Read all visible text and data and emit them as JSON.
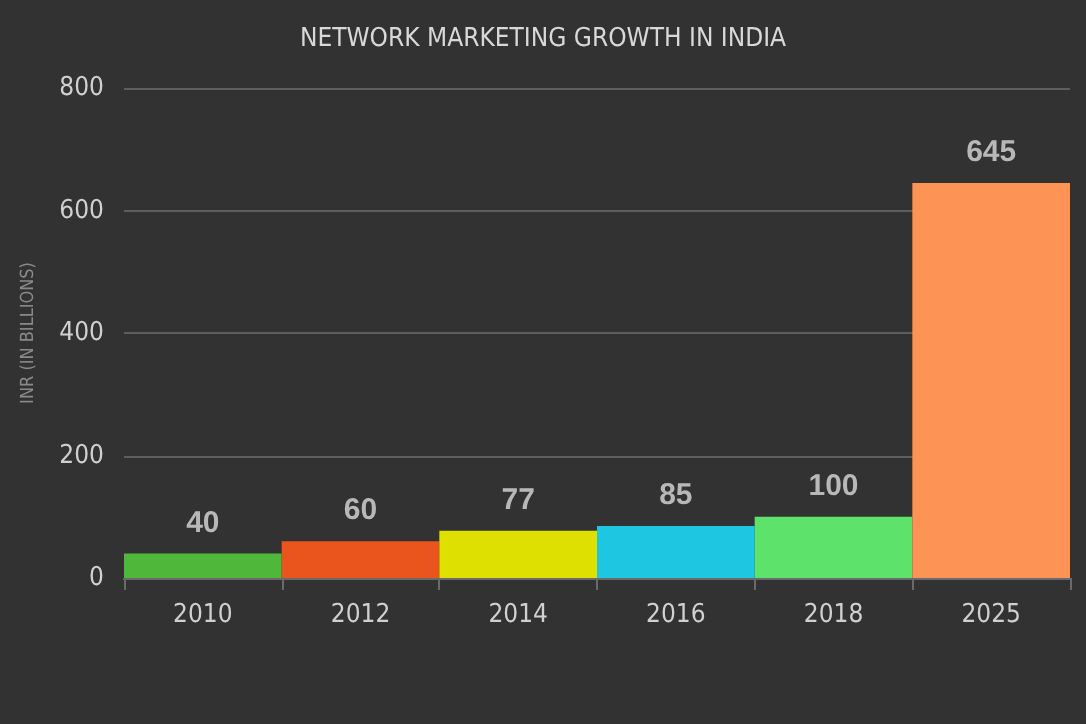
{
  "chart_data": {
    "type": "bar",
    "title": "NETWORK MARKETING GROWTH IN INDIA",
    "ylabel": "INR (IN BILLIONS)",
    "categories": [
      "2010",
      "2012",
      "2014",
      "2016",
      "2018",
      "2025"
    ],
    "values": [
      40,
      60,
      77,
      85,
      100,
      645
    ],
    "colors": [
      "#4fb83a",
      "#ea551d",
      "#dde000",
      "#1ec6e2",
      "#5de26c",
      "#fd9455"
    ],
    "ylim": [
      0,
      800
    ],
    "yticks": [
      0,
      200,
      400,
      600,
      800
    ],
    "grid": "y",
    "data_labels": true
  }
}
